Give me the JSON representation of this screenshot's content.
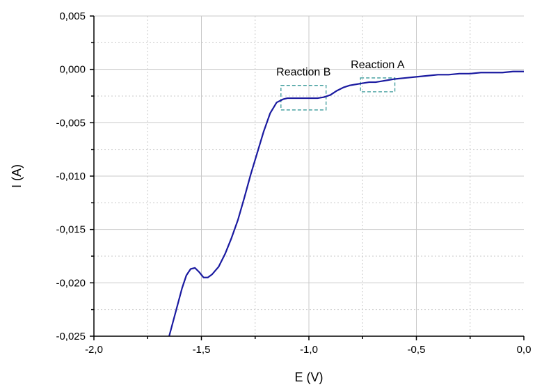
{
  "chart_data": {
    "type": "line",
    "xlabel": "E (V)",
    "ylabel": "I (A)",
    "xlim": [
      -2.0,
      0.0
    ],
    "ylim": [
      -0.025,
      0.005
    ],
    "x_ticks": [
      -2.0,
      -1.5,
      -1.0,
      -0.5,
      0.0
    ],
    "x_tick_labels": [
      "-2,0",
      "-1,5",
      "-1,0",
      "-0,5",
      "0,0"
    ],
    "y_ticks": [
      0.005,
      0.0,
      -0.005,
      -0.01,
      -0.015,
      -0.02,
      -0.025
    ],
    "y_tick_labels": [
      "0,005",
      "0,000",
      "-0,005",
      "-0,010",
      "-0,015",
      "-0,020",
      "-0,025"
    ],
    "grid": true,
    "series_color": "#1a1aa0",
    "annotation_color": "#3a9a9a",
    "series": [
      {
        "x": [
          -1.65,
          -1.63,
          -1.61,
          -1.59,
          -1.57,
          -1.55,
          -1.53,
          -1.51,
          -1.49,
          -1.47,
          -1.45,
          -1.42,
          -1.39,
          -1.36,
          -1.33,
          -1.3,
          -1.27,
          -1.24,
          -1.21,
          -1.18,
          -1.15,
          -1.12,
          -1.1,
          -1.08,
          -1.05,
          -1.02,
          -0.99,
          -0.96,
          -0.93,
          -0.9,
          -0.87,
          -0.84,
          -0.81,
          -0.78,
          -0.75,
          -0.72,
          -0.69,
          -0.66,
          -0.63,
          -0.6,
          -0.55,
          -0.5,
          -0.45,
          -0.4,
          -0.35,
          -0.3,
          -0.25,
          -0.2,
          -0.15,
          -0.1,
          -0.05,
          0.0
        ],
        "y": [
          -0.025,
          -0.0235,
          -0.022,
          -0.0205,
          -0.0193,
          -0.0187,
          -0.0186,
          -0.019,
          -0.0195,
          -0.0195,
          -0.0192,
          -0.0185,
          -0.0173,
          -0.0158,
          -0.0141,
          -0.012,
          -0.0098,
          -0.0078,
          -0.0058,
          -0.0041,
          -0.0031,
          -0.0028,
          -0.0027,
          -0.0027,
          -0.0027,
          -0.0027,
          -0.0027,
          -0.0027,
          -0.0026,
          -0.0024,
          -0.002,
          -0.0017,
          -0.0015,
          -0.0014,
          -0.0013,
          -0.0012,
          -0.0012,
          -0.0011,
          -0.001,
          -0.0009,
          -0.0008,
          -0.0007,
          -0.0006,
          -0.0005,
          -0.0005,
          -0.0004,
          -0.0004,
          -0.0003,
          -0.0003,
          -0.0003,
          -0.0002,
          -0.0002
        ]
      }
    ],
    "annotations": [
      {
        "label": "Reaction B",
        "x_range": [
          -1.13,
          -0.92
        ],
        "y_range": [
          -0.0038,
          -0.0015
        ]
      },
      {
        "label": "Reaction A",
        "x_range": [
          -0.76,
          -0.6
        ],
        "y_range": [
          -0.0021,
          -0.0008
        ]
      }
    ]
  }
}
